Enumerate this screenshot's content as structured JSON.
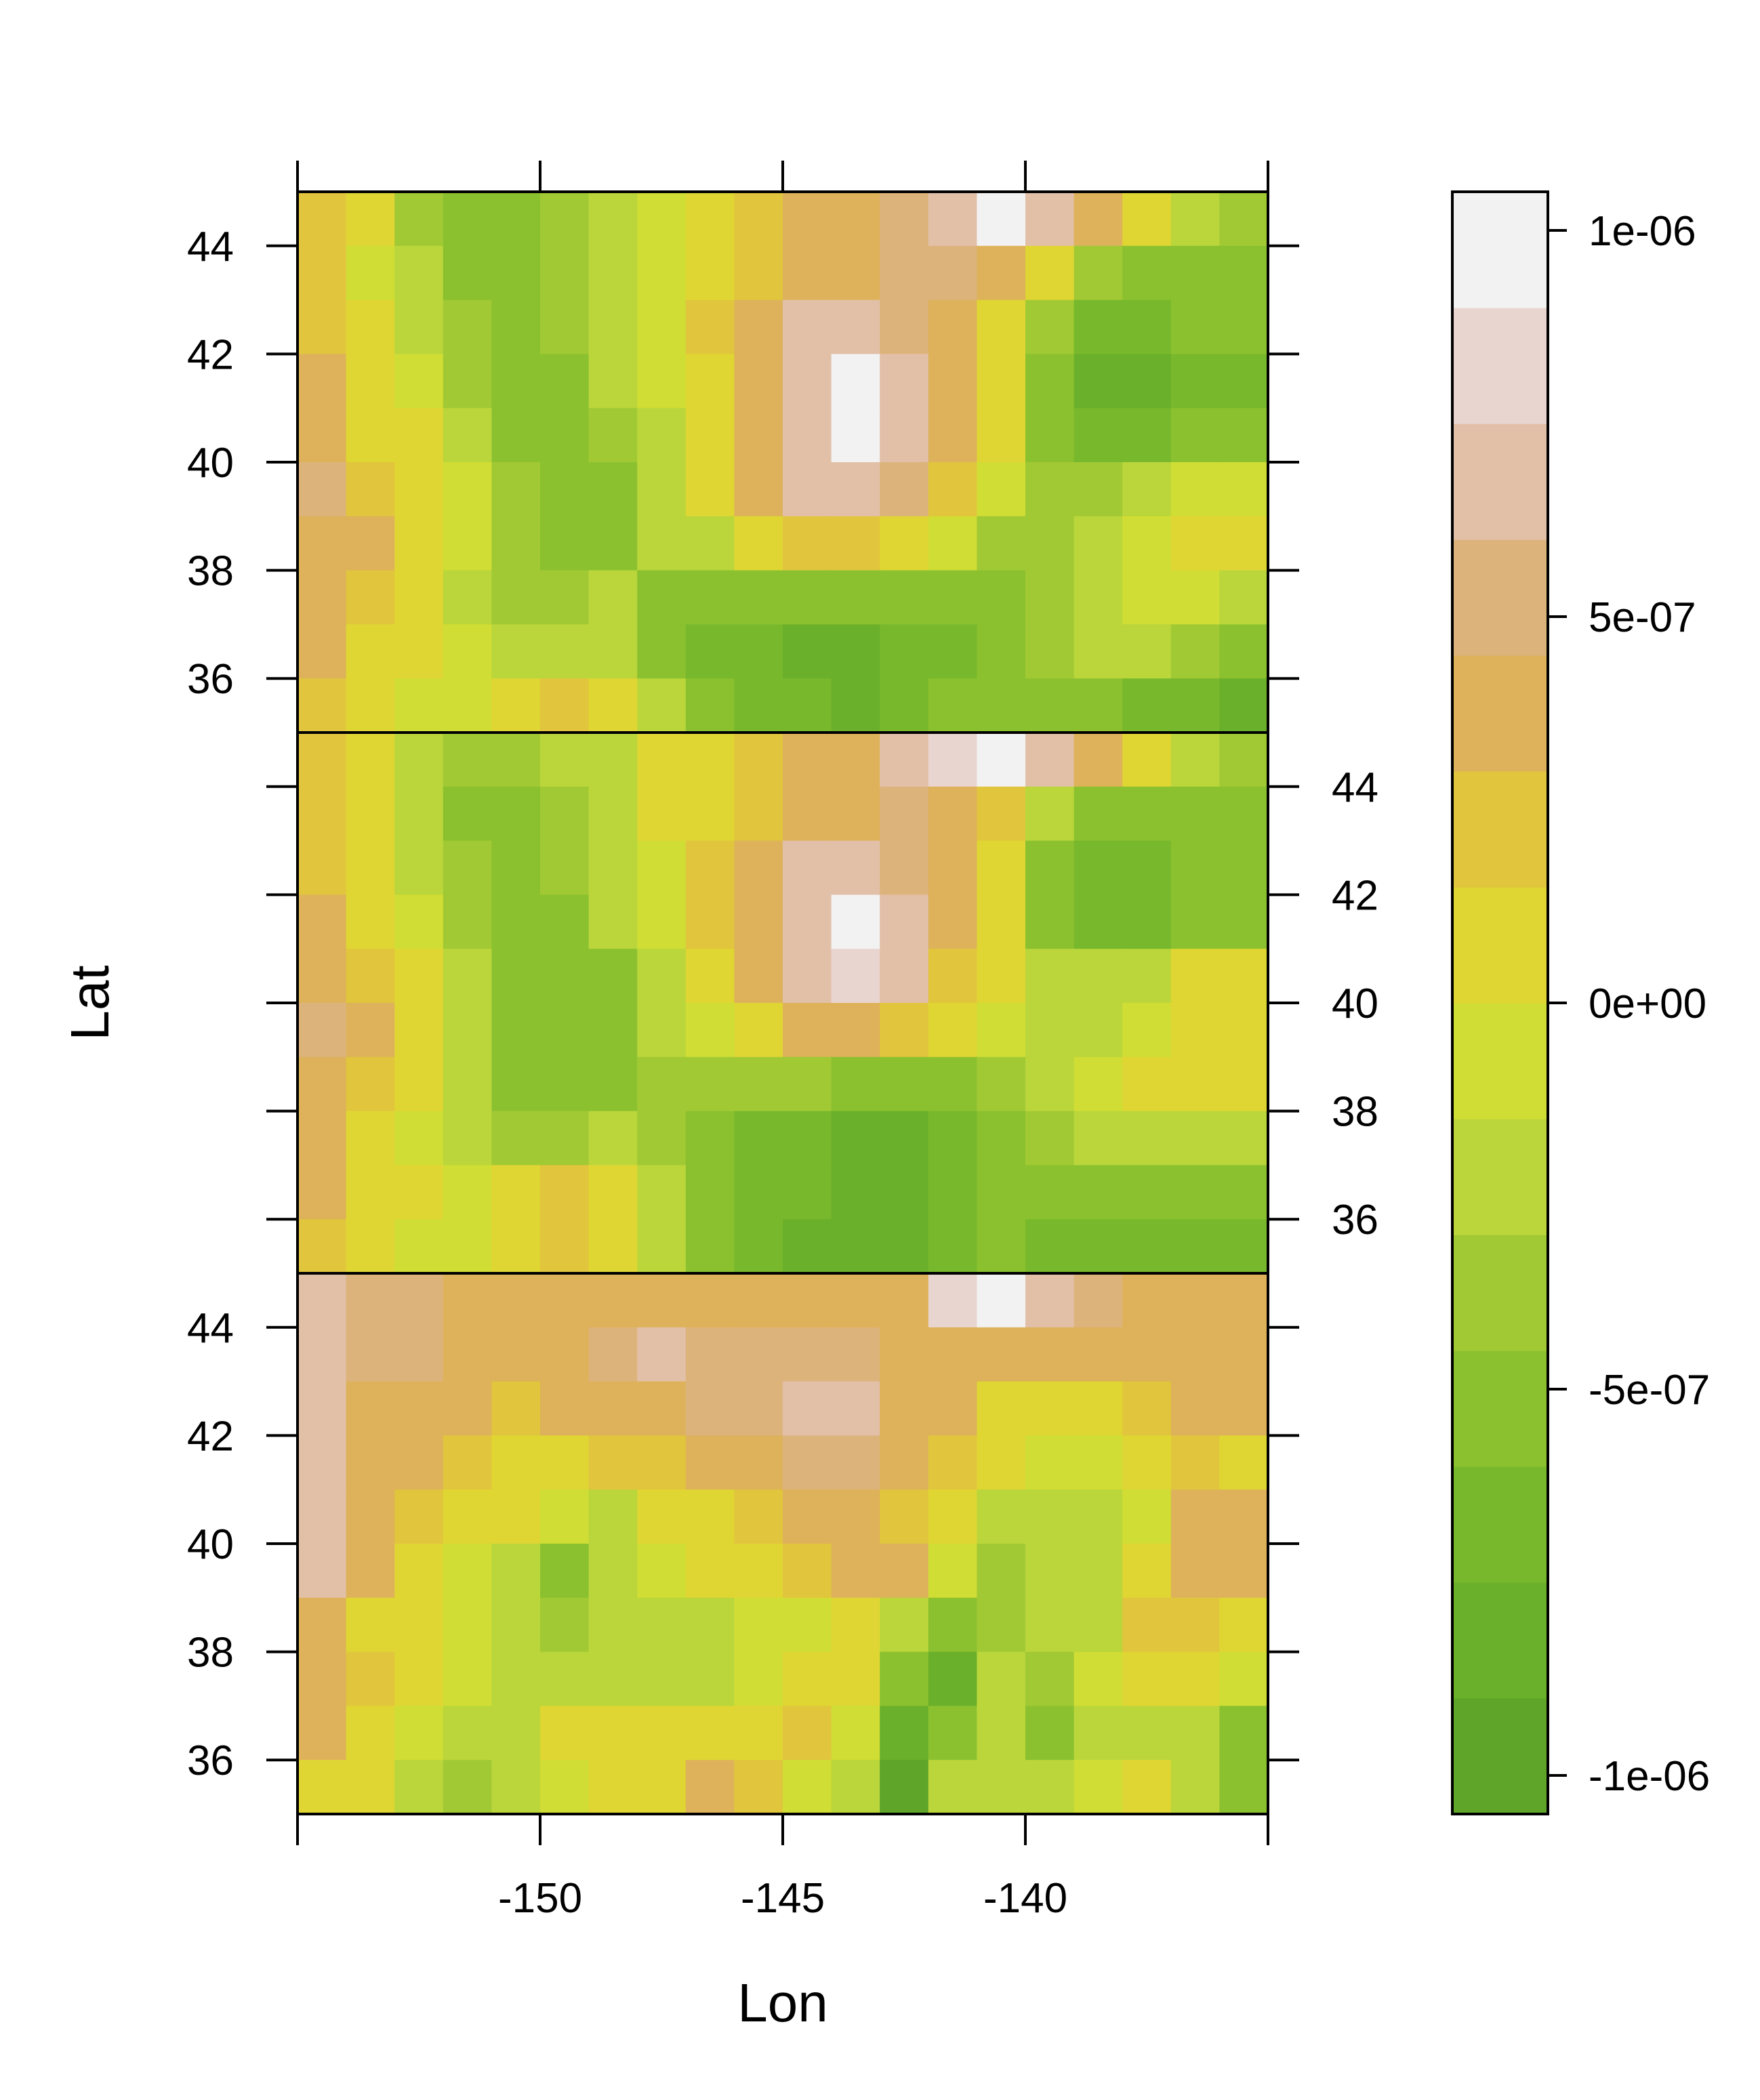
{
  "chart_data": {
    "type": "heatmap",
    "xlabel": "Lon",
    "ylabel": "Lat",
    "xlim": [
      -155,
      -135
    ],
    "ylim": [
      35,
      45
    ],
    "x_ticks": [
      -150,
      -145,
      -140
    ],
    "y_ticks": [
      36,
      38,
      40,
      42,
      44
    ],
    "grid_step_deg": 1,
    "panel_layout": "3 stacked panels sharing the Lon axis",
    "colorbar": {
      "range": [
        -1.05e-06,
        1.05e-06
      ],
      "tick_values": [
        1e-06,
        5e-07,
        0,
        -5e-07,
        -1e-06
      ],
      "tick_labels": [
        "1e-06",
        "5e-07",
        "0e+00",
        "-5e-07",
        "-1e-06"
      ],
      "colors_low_to_high": [
        "#5ea52a",
        "#6bb02b",
        "#78b82c",
        "#8bc12f",
        "#a1c934",
        "#bad63b",
        "#d0dd34",
        "#e0d633",
        "#e1c53d",
        "#ddb25a",
        "#ddb37c",
        "#e2c0a8",
        "#e9d5cf",
        "#f2f2f2"
      ]
    },
    "panels": [
      {
        "position": "top",
        "rows_lat_north_to_south": [
          44.5,
          43.5,
          42.5,
          41.5,
          40.5,
          39.5,
          38.5,
          37.5,
          36.5,
          35.5
        ],
        "cols_lon_west_to_east": [
          -154.5,
          -153.5,
          -152.5,
          -151.5,
          -150.5,
          -149.5,
          -148.5,
          -147.5,
          -146.5,
          -145.5,
          -144.5,
          -143.5,
          -142.5,
          -141.5,
          -140.5,
          -139.5,
          -138.5,
          -137.5,
          -136.5,
          -135.5
        ],
        "values_e7": [
          [
            2,
            0,
            -4,
            -5,
            -5,
            -4,
            -2,
            -1,
            1,
            2,
            3,
            4,
            5,
            7,
            9,
            7,
            4,
            1,
            -2,
            -4
          ],
          [
            2,
            -1,
            -3,
            -5,
            -5,
            -4,
            -2,
            -1,
            1,
            2,
            3,
            4,
            5,
            5,
            4,
            0,
            -4,
            -5,
            -5,
            -5
          ],
          [
            2,
            0,
            -2,
            -4,
            -5,
            -4,
            -2,
            -1,
            2,
            3,
            6,
            7,
            5,
            3,
            0,
            -4,
            -7,
            -7,
            -6,
            -6
          ],
          [
            3,
            1,
            -1,
            -4,
            -6,
            -5,
            -3,
            -1,
            1,
            4,
            7,
            9,
            7,
            3,
            0,
            -5,
            -8,
            -8,
            -7,
            -7
          ],
          [
            3,
            1,
            0,
            -3,
            -6,
            -6,
            -4,
            -2,
            1,
            4,
            7,
            9,
            7,
            3,
            0,
            -5,
            -7,
            -7,
            -6,
            -5
          ],
          [
            5,
            2,
            1,
            -1,
            -4,
            -6,
            -5,
            -3,
            0,
            3,
            6,
            7,
            5,
            2,
            -1,
            -4,
            -4,
            -3,
            -1,
            -1
          ],
          [
            4,
            3,
            1,
            -1,
            -4,
            -6,
            -5,
            -3,
            -2,
            0,
            2,
            2,
            1,
            -1,
            -4,
            -4,
            -2,
            -1,
            1,
            1
          ],
          [
            3,
            2,
            0,
            -2,
            -4,
            -4,
            -3,
            -5,
            -6,
            -6,
            -6,
            -6,
            -5,
            -5,
            -5,
            -4,
            -2,
            -1,
            -1,
            -3
          ],
          [
            3,
            1,
            0,
            -1,
            -2,
            -2,
            -3,
            -5,
            -7,
            -7,
            -8,
            -8,
            -7,
            -7,
            -6,
            -4,
            -3,
            -3,
            -4,
            -5
          ],
          [
            2,
            0,
            -1,
            -1,
            0,
            2,
            1,
            -3,
            -6,
            -7,
            -7,
            -8,
            -7,
            -6,
            -6,
            -6,
            -6,
            -7,
            -7,
            -8
          ]
        ]
      },
      {
        "position": "middle",
        "rows_lat_north_to_south": [
          44.5,
          43.5,
          42.5,
          41.5,
          40.5,
          39.5,
          38.5,
          37.5,
          36.5,
          35.5
        ],
        "cols_lon_west_to_east": [
          -154.5,
          -153.5,
          -152.5,
          -151.5,
          -150.5,
          -149.5,
          -148.5,
          -147.5,
          -146.5,
          -145.5,
          -144.5,
          -143.5,
          -142.5,
          -141.5,
          -140.5,
          -139.5,
          -138.5,
          -137.5,
          -136.5,
          -135.5
        ],
        "values_e7": [
          [
            2,
            0,
            -3,
            -4,
            -4,
            -3,
            -2,
            0,
            1,
            2,
            3,
            4,
            6,
            8,
            9,
            7,
            4,
            0,
            -3,
            -4
          ],
          [
            2,
            0,
            -3,
            -5,
            -5,
            -4,
            -2,
            0,
            1,
            2,
            3,
            4,
            5,
            4,
            2,
            -2,
            -5,
            -5,
            -5,
            -5
          ],
          [
            2,
            0,
            -2,
            -4,
            -5,
            -4,
            -2,
            -1,
            2,
            4,
            6,
            7,
            5,
            3,
            0,
            -5,
            -7,
            -7,
            -6,
            -6
          ],
          [
            3,
            1,
            -1,
            -4,
            -6,
            -5,
            -3,
            -1,
            2,
            4,
            7,
            9,
            7,
            3,
            0,
            -5,
            -7,
            -7,
            -6,
            -6
          ],
          [
            4,
            2,
            0,
            -3,
            -6,
            -6,
            -5,
            -3,
            0,
            4,
            6,
            8,
            6,
            2,
            0,
            -3,
            -3,
            -2,
            0,
            0
          ],
          [
            5,
            3,
            1,
            -2,
            -5,
            -6,
            -5,
            -3,
            -1,
            1,
            3,
            3,
            2,
            0,
            -1,
            -2,
            -2,
            -1,
            0,
            0
          ],
          [
            3,
            2,
            0,
            -3,
            -5,
            -6,
            -5,
            -4,
            -4,
            -4,
            -4,
            -5,
            -5,
            -5,
            -4,
            -3,
            -1,
            0,
            1,
            0
          ],
          [
            3,
            1,
            -1,
            -2,
            -4,
            -4,
            -3,
            -4,
            -6,
            -7,
            -7,
            -8,
            -8,
            -7,
            -6,
            -4,
            -2,
            -2,
            -2,
            -3
          ],
          [
            3,
            1,
            0,
            -1,
            1,
            2,
            1,
            -2,
            -5,
            -7,
            -7,
            -8,
            -8,
            -7,
            -6,
            -6,
            -5,
            -5,
            -5,
            -6
          ],
          [
            2,
            0,
            -1,
            -1,
            0,
            2,
            1,
            -3,
            -6,
            -7,
            -8,
            -8,
            -8,
            -7,
            -6,
            -7,
            -7,
            -7,
            -7,
            -7
          ]
        ]
      },
      {
        "position": "bottom",
        "rows_lat_north_to_south": [
          44.5,
          43.5,
          42.5,
          41.5,
          40.5,
          39.5,
          38.5,
          37.5,
          36.5,
          35.5
        ],
        "cols_lon_west_to_east": [
          -154.5,
          -153.5,
          -152.5,
          -151.5,
          -150.5,
          -149.5,
          -148.5,
          -147.5,
          -146.5,
          -145.5,
          -144.5,
          -143.5,
          -142.5,
          -141.5,
          -140.5,
          -139.5,
          -138.5,
          -137.5,
          -136.5,
          -135.5
        ],
        "values_e7": [
          [
            6,
            5,
            5,
            4,
            4,
            4,
            4,
            4,
            4,
            4,
            3,
            3,
            4,
            8,
            9,
            7,
            5,
            4,
            3,
            4
          ],
          [
            6,
            5,
            5,
            4,
            4,
            4,
            5,
            6,
            5,
            5,
            5,
            5,
            4,
            4,
            4,
            3,
            3,
            3,
            3,
            3
          ],
          [
            6,
            4,
            3,
            3,
            2,
            3,
            3,
            4,
            5,
            5,
            6,
            7,
            4,
            3,
            1,
            0,
            1,
            2,
            3,
            3
          ],
          [
            6,
            4,
            3,
            2,
            1,
            0,
            2,
            2,
            3,
            4,
            5,
            5,
            3,
            2,
            0,
            -1,
            -1,
            0,
            2,
            1
          ],
          [
            6,
            4,
            2,
            1,
            0,
            -1,
            -2,
            0,
            1,
            2,
            3,
            3,
            2,
            0,
            -2,
            -3,
            -3,
            -1,
            3,
            3
          ],
          [
            6,
            3,
            1,
            -1,
            -3,
            -5,
            -3,
            -1,
            0,
            1,
            2,
            3,
            4,
            -1,
            -4,
            -3,
            -2,
            1,
            4,
            3
          ],
          [
            3,
            1,
            0,
            -1,
            -2,
            -4,
            -3,
            -3,
            -3,
            -1,
            -1,
            0,
            -3,
            -6,
            -4,
            -3,
            -2,
            2,
            2,
            0
          ],
          [
            3,
            2,
            1,
            -1,
            -2,
            -3,
            -3,
            -3,
            -2,
            -1,
            0,
            1,
            -6,
            -8,
            -3,
            -4,
            -1,
            1,
            0,
            -1
          ],
          [
            3,
            1,
            -1,
            -3,
            -2,
            0,
            1,
            1,
            1,
            0,
            2,
            -1,
            -8,
            -6,
            -3,
            -5,
            -3,
            -2,
            -3,
            -5
          ],
          [
            1,
            0,
            -3,
            -4,
            -3,
            -1,
            0,
            1,
            3,
            2,
            -1,
            -3,
            -9,
            -3,
            -2,
            -3,
            -1,
            0,
            -2,
            -6
          ]
        ]
      }
    ]
  }
}
